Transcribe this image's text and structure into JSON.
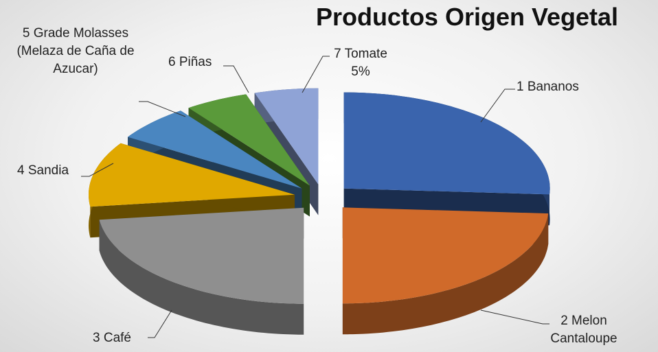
{
  "chart_data": {
    "type": "pie3d",
    "title": "Productos Origen Vegetal",
    "categories": [
      "1 Bananos",
      "2 Melon Cantaloupe",
      "3 Café",
      "4 Sandia",
      "5 Grade Molasses (Melaza de Caña de Azucar)",
      "6 Piñas",
      "7 Tomate"
    ],
    "values": [
      26,
      24,
      23,
      11,
      6,
      5,
      5
    ],
    "value_labels": [
      null,
      null,
      null,
      null,
      null,
      null,
      "5%"
    ],
    "colors": [
      "#3a64ad",
      "#d06a2a",
      "#8f8f8f",
      "#e0a800",
      "#4a86c0",
      "#5a9a3a",
      "#8fa3d6"
    ]
  }
}
